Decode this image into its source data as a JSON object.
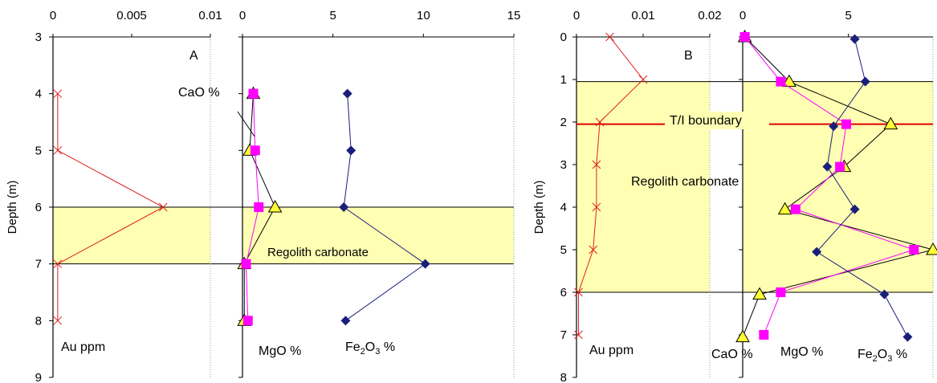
{
  "chart_data": [
    {
      "type": "line",
      "panel_label": "A",
      "ylabel": "Depth (m)",
      "y_ticks": [
        "3",
        "4",
        "5",
        "6",
        "7",
        "8",
        "9"
      ],
      "ylim": [
        3,
        9
      ],
      "y_inverted": true,
      "regolith_band": [
        6,
        7
      ],
      "annotations": {
        "regolith": "Regolith carbonate",
        "cao": "CaO %"
      },
      "au_axis": {
        "label": "Au ppm",
        "xlim": [
          0,
          0.01
        ],
        "ticks": [
          "0",
          "0.005",
          "0.01"
        ]
      },
      "oxide_axis": {
        "xlim": [
          0,
          15
        ],
        "ticks": [
          "0",
          "5",
          "10",
          "15"
        ]
      },
      "series": [
        {
          "key": "au",
          "axis": "au",
          "color": "#e02020",
          "marker": "x",
          "depth": [
            4,
            5,
            6,
            7,
            8
          ],
          "values": [
            0.0003,
            0.0003,
            0.007,
            0.0003,
            0.0003
          ]
        },
        {
          "key": "cao",
          "axis": "oxide",
          "color": "#000000",
          "marker": "triangle",
          "depth": [
            4,
            5,
            6,
            7,
            8
          ],
          "values": [
            0.6,
            0.4,
            1.8,
            0.1,
            0.1
          ]
        },
        {
          "key": "mgo",
          "label": "MgO %",
          "axis": "oxide",
          "color": "#ff00ff",
          "marker": "square",
          "depth": [
            4,
            5,
            6,
            7,
            8
          ],
          "values": [
            0.6,
            0.7,
            0.9,
            0.2,
            0.3
          ]
        },
        {
          "key": "fe",
          "label_main": "Fe",
          "label_sub": "2",
          "label_mid": "O",
          "label_sub2": "3",
          "label_tail": " %",
          "axis": "oxide",
          "color": "#1a1f7a",
          "marker": "diamond",
          "depth": [
            4,
            5,
            6,
            7,
            8
          ],
          "values": [
            5.8,
            6.0,
            5.6,
            10.1,
            5.7
          ]
        }
      ]
    },
    {
      "type": "line",
      "panel_label": "B",
      "ylabel": "Depth (m)",
      "y_ticks": [
        "0",
        "1",
        "2",
        "3",
        "4",
        "5",
        "6",
        "7",
        "8"
      ],
      "ylim": [
        0,
        8
      ],
      "y_inverted": true,
      "regolith_band": [
        1.05,
        6
      ],
      "boundary_depth": 2.05,
      "annotations": {
        "boundary": "T/I boundary",
        "regolith": "Regolith carbonate"
      },
      "au_axis": {
        "label": "Au ppm",
        "xlim": [
          0,
          0.02
        ],
        "ticks": [
          "0",
          "0.01",
          "0.02"
        ]
      },
      "oxide_axis": {
        "xlim": [
          0,
          9
        ],
        "ticks": [
          "0",
          "5"
        ]
      },
      "series": [
        {
          "key": "au",
          "axis": "au",
          "color": "#e02020",
          "marker": "x",
          "depth": [
            0,
            1,
            2,
            3,
            4,
            5,
            6,
            7
          ],
          "values": [
            0.005,
            0.01,
            0.0035,
            0.003,
            0.003,
            0.0025,
            0.0003,
            0.0003
          ]
        },
        {
          "key": "cao",
          "label": "CaO %",
          "axis": "oxide",
          "color": "#000000",
          "marker": "triangle",
          "depth": [
            0,
            1.05,
            2.05,
            3.05,
            4.05,
            5,
            6.05,
            7.05
          ],
          "values": [
            0.1,
            2.2,
            7.0,
            4.8,
            2.0,
            9.0,
            0.8,
            0.0
          ]
        },
        {
          "key": "mgo",
          "label": "MgO %",
          "axis": "oxide",
          "color": "#ff00ff",
          "marker": "square",
          "depth": [
            0,
            1.05,
            2.05,
            3.05,
            4.05,
            5,
            6,
            7
          ],
          "values": [
            0.1,
            1.8,
            4.9,
            4.6,
            2.5,
            8.1,
            1.8,
            1.0
          ]
        },
        {
          "key": "fe",
          "label_main": "Fe",
          "label_sub": "2",
          "label_mid": "O",
          "label_sub2": "3",
          "label_tail": " %",
          "axis": "oxide",
          "color": "#1a1f7a",
          "marker": "diamond",
          "depth": [
            0.05,
            1.05,
            2.1,
            3.05,
            4.05,
            5.05,
            6.05,
            7.05
          ],
          "values": [
            5.3,
            5.8,
            4.3,
            4.0,
            5.3,
            3.5,
            6.7,
            7.8
          ]
        }
      ]
    }
  ]
}
